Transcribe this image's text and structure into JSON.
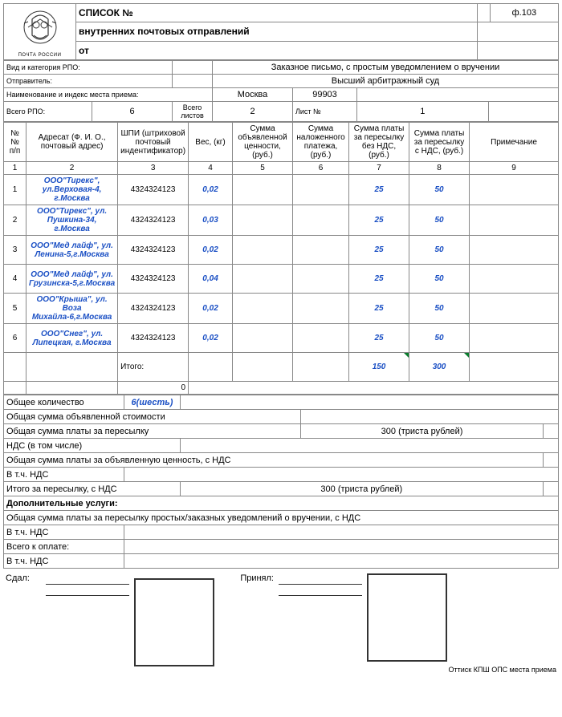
{
  "form": {
    "code": "ф.103"
  },
  "header": {
    "title": "СПИСОК №",
    "sub1": "внутренних почтовых отправлений",
    "sub2": "от",
    "logo_caption": "ПОЧТА РОССИИ"
  },
  "labels": {
    "kind": "Вид и категория РПО:",
    "sender": "Отправитель:",
    "place": "Наименование и индекс места приема:",
    "total_rpo": "Всего РПО:",
    "total_sheets": "Всего листов",
    "sheet_no": "Лист №",
    "itogo": "Итого:",
    "qty": "Общее количество",
    "sum_decl": "Общая сумма объявленной стоимости",
    "sum_ship": "Общая сумма платы за пересылку",
    "nds_incl": "НДС (в том числе)",
    "sum_decl_nds": "Общая сумма платы за объявленную ценность, с НДС",
    "vtch_nds": "В т.ч. НДС",
    "itogo_ship_nds": "Итого за пересылку, с НДС",
    "addl": "Дополнительные услуги:",
    "sum_notif": "Общая сумма платы за пересылку простых/заказных уведомлений о вручении, с НДС",
    "total_pay": "Всего к оплате:",
    "sdal": "Сдал:",
    "prinyal": "Принял:",
    "stamp": "Оттиск КПШ ОПС места приема"
  },
  "info": {
    "kind_value": "Заказное письмо, с простым уведомлением о вручении",
    "sender_value": "Высший арбитражный суд",
    "place_city": "Москва",
    "place_index": "99903",
    "total_rpo": "6",
    "total_sheets": "2",
    "sheet_no": "1"
  },
  "columns": {
    "c1": "№№ п/п",
    "c2": "Адресат (Ф. И. О., почтовый адрес)",
    "c3": "ШПИ (штриховой почтовый индентификатор)",
    "c4": "Вес, (кг)",
    "c5": "Сумма объявленной ценности, (руб.)",
    "c6": "Сумма наложенного платежа, (руб.)",
    "c7": "Сумма платы за пересылку без НДС, (руб.)",
    "c8": "Сумма платы за пересылку с НДС, (руб.)",
    "c9": "Примечание"
  },
  "colnums": {
    "n1": "1",
    "n2": "2",
    "n3": "3",
    "n4": "4",
    "n5": "5",
    "n6": "6",
    "n7": "7",
    "n8": "8",
    "n9": "9"
  },
  "rows": [
    {
      "n": "1",
      "addr": "ООО\"Тирекс\", ул.Верховая-4, г.Москва",
      "shpi": "4324324123",
      "w": "0,02",
      "p7": "25",
      "p8": "50"
    },
    {
      "n": "2",
      "addr": "ООО\"Тирекс\", ул. Пушкина-34, г.Москва",
      "shpi": "4324324123",
      "w": "0,03",
      "p7": "25",
      "p8": "50"
    },
    {
      "n": "3",
      "addr": "ООО\"Мед лайф\", ул. Ленина-5,г.Москва",
      "shpi": "4324324123",
      "w": "0,02",
      "p7": "25",
      "p8": "50"
    },
    {
      "n": "4",
      "addr": "ООО\"Мед лайф\", ул. Грузинска-5,г.Москва",
      "shpi": "4324324123",
      "w": "0,04",
      "p7": "25",
      "p8": "50"
    },
    {
      "n": "5",
      "addr": "ООО\"Крыша\", ул. Воза Михайла-6,г.Москва",
      "shpi": "4324324123",
      "w": "0,02",
      "p7": "25",
      "p8": "50"
    },
    {
      "n": "6",
      "addr": "ООО\"Снег\", ул. Липецкая, г.Москва",
      "shpi": "4324324123",
      "w": "0,02",
      "p7": "25",
      "p8": "50"
    }
  ],
  "totals": {
    "p7": "150",
    "p8": "300",
    "zero": "0"
  },
  "summary": {
    "qty_val": "6(шесть)",
    "ship_val": "300 (триста рублей)",
    "itogo_ship_val": "300 (триста рублей)"
  },
  "colors": {
    "blue": "#1a4fc4",
    "border": "#888888",
    "lightborder": "#cccccc",
    "triangle": "#0a7d2d"
  }
}
